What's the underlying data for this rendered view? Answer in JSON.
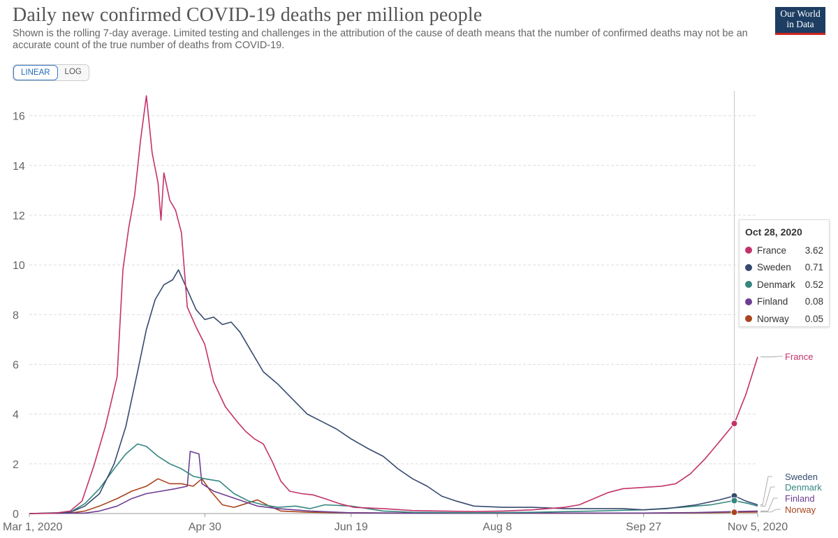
{
  "header": {
    "title": "Daily new confirmed COVID-19 deaths per million people",
    "subtitle": "Shown is the rolling 7-day average. Limited testing and challenges in the attribution of the cause of death means that the number of confirmed deaths may not be an accurate count of the true number of deaths from COVID-19.",
    "logo_line1": "Our World",
    "logo_line2": "in Data"
  },
  "controls": {
    "linear_label": "LINEAR",
    "log_label": "LOG",
    "active": "LINEAR"
  },
  "tooltip": {
    "date": "Oct 28, 2020",
    "rows": [
      {
        "name": "France",
        "value": "3.62",
        "color": "#c3326a"
      },
      {
        "name": "Sweden",
        "value": "0.71",
        "color": "#364a6e"
      },
      {
        "name": "Denmark",
        "value": "0.52",
        "color": "#34867f"
      },
      {
        "name": "Finland",
        "value": "0.08",
        "color": "#6c3d91"
      },
      {
        "name": "Norway",
        "value": "0.05",
        "color": "#a9441d"
      }
    ]
  },
  "chart_data": {
    "type": "line",
    "title": "Daily new confirmed COVID-19 deaths per million people",
    "ylabel": "",
    "xlabel": "",
    "ylim": [
      0,
      17
    ],
    "yticks": [
      0,
      2,
      4,
      6,
      8,
      10,
      12,
      14,
      16
    ],
    "xlim": [
      "2020-03-01",
      "2020-11-05"
    ],
    "xticks": [
      {
        "date": "2020-03-01",
        "label": "Mar 1, 2020"
      },
      {
        "date": "2020-04-30",
        "label": "Apr 30"
      },
      {
        "date": "2020-06-19",
        "label": "Jun 19"
      },
      {
        "date": "2020-08-08",
        "label": "Aug 8"
      },
      {
        "date": "2020-09-27",
        "label": "Sep 27"
      },
      {
        "date": "2020-11-05",
        "label": "Nov 5, 2020"
      }
    ],
    "grid": true,
    "hover_date": "2020-10-28",
    "series": [
      {
        "name": "France",
        "color": "#c3326a",
        "points": [
          [
            "2020-03-01",
            0
          ],
          [
            "2020-03-10",
            0.02
          ],
          [
            "2020-03-15",
            0.1
          ],
          [
            "2020-03-19",
            0.5
          ],
          [
            "2020-03-23",
            1.9
          ],
          [
            "2020-03-27",
            3.5
          ],
          [
            "2020-03-31",
            5.5
          ],
          [
            "2020-04-02",
            9.8
          ],
          [
            "2020-04-04",
            11.5
          ],
          [
            "2020-04-06",
            12.8
          ],
          [
            "2020-04-08",
            15
          ],
          [
            "2020-04-10",
            16.8
          ],
          [
            "2020-04-12",
            14.5
          ],
          [
            "2020-04-14",
            13.3
          ],
          [
            "2020-04-15",
            11.8
          ],
          [
            "2020-04-16",
            13.7
          ],
          [
            "2020-04-18",
            12.6
          ],
          [
            "2020-04-20",
            12.2
          ],
          [
            "2020-04-22",
            11.3
          ],
          [
            "2020-04-24",
            8.3
          ],
          [
            "2020-04-27",
            7.5
          ],
          [
            "2020-04-30",
            6.8
          ],
          [
            "2020-05-03",
            5.3
          ],
          [
            "2020-05-07",
            4.3
          ],
          [
            "2020-05-11",
            3.7
          ],
          [
            "2020-05-14",
            3.3
          ],
          [
            "2020-05-17",
            3.0
          ],
          [
            "2020-05-20",
            2.8
          ],
          [
            "2020-05-23",
            2.1
          ],
          [
            "2020-05-26",
            1.3
          ],
          [
            "2020-05-29",
            0.9
          ],
          [
            "2020-06-02",
            0.8
          ],
          [
            "2020-06-06",
            0.75
          ],
          [
            "2020-06-10",
            0.6
          ],
          [
            "2020-06-15",
            0.4
          ],
          [
            "2020-06-20",
            0.25
          ],
          [
            "2020-06-30",
            0.2
          ],
          [
            "2020-07-10",
            0.12
          ],
          [
            "2020-07-20",
            0.1
          ],
          [
            "2020-07-31",
            0.08
          ],
          [
            "2020-08-10",
            0.1
          ],
          [
            "2020-08-20",
            0.15
          ],
          [
            "2020-08-31",
            0.25
          ],
          [
            "2020-09-05",
            0.35
          ],
          [
            "2020-09-10",
            0.6
          ],
          [
            "2020-09-15",
            0.85
          ],
          [
            "2020-09-20",
            1.0
          ],
          [
            "2020-09-27",
            1.05
          ],
          [
            "2020-10-03",
            1.1
          ],
          [
            "2020-10-08",
            1.2
          ],
          [
            "2020-10-13",
            1.6
          ],
          [
            "2020-10-18",
            2.2
          ],
          [
            "2020-10-23",
            2.9
          ],
          [
            "2020-10-28",
            3.62
          ],
          [
            "2020-11-01",
            4.8
          ],
          [
            "2020-11-05",
            6.3
          ]
        ]
      },
      {
        "name": "Sweden",
        "color": "#364a6e",
        "points": [
          [
            "2020-03-01",
            0
          ],
          [
            "2020-03-10",
            0.02
          ],
          [
            "2020-03-15",
            0.05
          ],
          [
            "2020-03-20",
            0.3
          ],
          [
            "2020-03-25",
            0.8
          ],
          [
            "2020-03-30",
            2.0
          ],
          [
            "2020-04-03",
            3.5
          ],
          [
            "2020-04-07",
            5.7
          ],
          [
            "2020-04-10",
            7.4
          ],
          [
            "2020-04-13",
            8.6
          ],
          [
            "2020-04-16",
            9.2
          ],
          [
            "2020-04-19",
            9.4
          ],
          [
            "2020-04-21",
            9.8
          ],
          [
            "2020-04-24",
            9.0
          ],
          [
            "2020-04-27",
            8.2
          ],
          [
            "2020-04-30",
            7.8
          ],
          [
            "2020-05-03",
            7.9
          ],
          [
            "2020-05-06",
            7.6
          ],
          [
            "2020-05-09",
            7.7
          ],
          [
            "2020-05-12",
            7.3
          ],
          [
            "2020-05-16",
            6.5
          ],
          [
            "2020-05-20",
            5.7
          ],
          [
            "2020-05-25",
            5.2
          ],
          [
            "2020-05-30",
            4.6
          ],
          [
            "2020-06-04",
            4.0
          ],
          [
            "2020-06-09",
            3.7
          ],
          [
            "2020-06-14",
            3.4
          ],
          [
            "2020-06-19",
            3.0
          ],
          [
            "2020-06-25",
            2.6
          ],
          [
            "2020-06-30",
            2.3
          ],
          [
            "2020-07-05",
            1.8
          ],
          [
            "2020-07-10",
            1.4
          ],
          [
            "2020-07-15",
            1.1
          ],
          [
            "2020-07-20",
            0.7
          ],
          [
            "2020-07-25",
            0.5
          ],
          [
            "2020-07-31",
            0.3
          ],
          [
            "2020-08-10",
            0.25
          ],
          [
            "2020-08-20",
            0.25
          ],
          [
            "2020-08-31",
            0.2
          ],
          [
            "2020-09-10",
            0.2
          ],
          [
            "2020-09-20",
            0.2
          ],
          [
            "2020-09-27",
            0.15
          ],
          [
            "2020-10-05",
            0.2
          ],
          [
            "2020-10-15",
            0.35
          ],
          [
            "2020-10-23",
            0.55
          ],
          [
            "2020-10-28",
            0.71
          ],
          [
            "2020-11-01",
            0.5
          ],
          [
            "2020-11-05",
            0.35
          ]
        ]
      },
      {
        "name": "Denmark",
        "color": "#34867f",
        "points": [
          [
            "2020-03-01",
            0
          ],
          [
            "2020-03-15",
            0.05
          ],
          [
            "2020-03-20",
            0.4
          ],
          [
            "2020-03-25",
            1.0
          ],
          [
            "2020-03-30",
            1.8
          ],
          [
            "2020-04-03",
            2.4
          ],
          [
            "2020-04-07",
            2.8
          ],
          [
            "2020-04-10",
            2.7
          ],
          [
            "2020-04-14",
            2.3
          ],
          [
            "2020-04-18",
            2.0
          ],
          [
            "2020-04-22",
            1.8
          ],
          [
            "2020-04-26",
            1.5
          ],
          [
            "2020-04-30",
            1.4
          ],
          [
            "2020-05-05",
            1.3
          ],
          [
            "2020-05-10",
            0.8
          ],
          [
            "2020-05-15",
            0.5
          ],
          [
            "2020-05-20",
            0.35
          ],
          [
            "2020-05-25",
            0.25
          ],
          [
            "2020-05-31",
            0.3
          ],
          [
            "2020-06-05",
            0.2
          ],
          [
            "2020-06-10",
            0.35
          ],
          [
            "2020-06-19",
            0.3
          ],
          [
            "2020-06-30",
            0.1
          ],
          [
            "2020-07-10",
            0.05
          ],
          [
            "2020-07-31",
            0.03
          ],
          [
            "2020-08-20",
            0.05
          ],
          [
            "2020-09-10",
            0.1
          ],
          [
            "2020-09-27",
            0.15
          ],
          [
            "2020-10-10",
            0.25
          ],
          [
            "2020-10-20",
            0.35
          ],
          [
            "2020-10-28",
            0.52
          ],
          [
            "2020-11-02",
            0.4
          ],
          [
            "2020-11-05",
            0.3
          ]
        ]
      },
      {
        "name": "Finland",
        "color": "#6c3d91",
        "points": [
          [
            "2020-03-01",
            0
          ],
          [
            "2020-03-20",
            0.02
          ],
          [
            "2020-03-25",
            0.1
          ],
          [
            "2020-03-31",
            0.3
          ],
          [
            "2020-04-05",
            0.6
          ],
          [
            "2020-04-10",
            0.8
          ],
          [
            "2020-04-15",
            0.9
          ],
          [
            "2020-04-20",
            1.0
          ],
          [
            "2020-04-24",
            1.1
          ],
          [
            "2020-04-25",
            2.5
          ],
          [
            "2020-04-28",
            2.4
          ],
          [
            "2020-04-29",
            1.2
          ],
          [
            "2020-05-03",
            0.9
          ],
          [
            "2020-05-08",
            0.7
          ],
          [
            "2020-05-13",
            0.5
          ],
          [
            "2020-05-18",
            0.3
          ],
          [
            "2020-05-25",
            0.2
          ],
          [
            "2020-06-05",
            0.1
          ],
          [
            "2020-06-19",
            0.03
          ],
          [
            "2020-07-10",
            0.01
          ],
          [
            "2020-09-27",
            0.02
          ],
          [
            "2020-10-15",
            0.04
          ],
          [
            "2020-10-28",
            0.08
          ],
          [
            "2020-11-05",
            0.1
          ]
        ]
      },
      {
        "name": "Norway",
        "color": "#a9441d",
        "points": [
          [
            "2020-03-01",
            0
          ],
          [
            "2020-03-15",
            0.02
          ],
          [
            "2020-03-20",
            0.1
          ],
          [
            "2020-03-25",
            0.3
          ],
          [
            "2020-03-31",
            0.6
          ],
          [
            "2020-04-05",
            0.9
          ],
          [
            "2020-04-10",
            1.1
          ],
          [
            "2020-04-14",
            1.4
          ],
          [
            "2020-04-18",
            1.2
          ],
          [
            "2020-04-22",
            1.2
          ],
          [
            "2020-04-26",
            1.1
          ],
          [
            "2020-04-29",
            1.4
          ],
          [
            "2020-05-02",
            0.9
          ],
          [
            "2020-05-06",
            0.35
          ],
          [
            "2020-05-10",
            0.25
          ],
          [
            "2020-05-14",
            0.4
          ],
          [
            "2020-05-18",
            0.55
          ],
          [
            "2020-05-22",
            0.3
          ],
          [
            "2020-05-26",
            0.1
          ],
          [
            "2020-06-05",
            0.05
          ],
          [
            "2020-06-19",
            0.03
          ],
          [
            "2020-07-20",
            0.01
          ],
          [
            "2020-09-27",
            0.02
          ],
          [
            "2020-10-15",
            0.03
          ],
          [
            "2020-10-28",
            0.05
          ],
          [
            "2020-11-05",
            0.06
          ]
        ]
      }
    ]
  }
}
